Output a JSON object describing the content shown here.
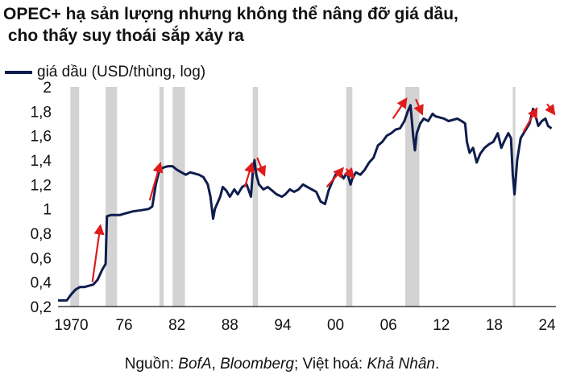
{
  "title_line1": "OPEC+ hạ sản lượng nhưng không thể nâng đỡ giá dầu,",
  "title_line2": " cho thấy suy thoái sắp xảy ra",
  "legend_label": "giá dầu (USD/thùng, log)",
  "source": {
    "prefix": "Nguồn: ",
    "s1": "BofA",
    "sep1": ", ",
    "s2": "Bloomberg",
    "sep2": "; Việt hoá: ",
    "s3": "Khả Nhân",
    "end": "."
  },
  "colors": {
    "line": "#0f1d4d",
    "shade": "#d3d3d3",
    "arrow": "#e01b1b"
  },
  "chart_data": {
    "type": "line",
    "ylim": [
      0.2,
      2.0
    ],
    "xlim": [
      1968.5,
      2025
    ],
    "y_ticks": [
      "0,2",
      "0,4",
      "0,6",
      "0,8",
      "1",
      "1,2",
      "1,4",
      "1,6",
      "1,8",
      "2"
    ],
    "y_tick_values": [
      0.2,
      0.4,
      0.6,
      0.8,
      1.0,
      1.2,
      1.4,
      1.6,
      1.8,
      2.0
    ],
    "x_ticks": [
      "1970",
      "76",
      "82",
      "88",
      "94",
      "00",
      "06",
      "12",
      "18",
      "24"
    ],
    "x_tick_values": [
      1970,
      1976,
      1982,
      1988,
      1994,
      2000,
      2006,
      2012,
      2018,
      2024
    ],
    "recessions": [
      [
        1969.9,
        1970.9
      ],
      [
        1973.9,
        1975.2
      ],
      [
        1980.0,
        1980.5
      ],
      [
        1981.5,
        1982.9
      ],
      [
        1990.6,
        1991.2
      ],
      [
        2001.2,
        2001.9
      ],
      [
        2007.9,
        2009.5
      ],
      [
        2020.1,
        2020.4
      ]
    ],
    "series": [
      {
        "x": [
          1968.5,
          1969.5,
          1970.0,
          1970.5,
          1971.0,
          1971.5,
          1972.0,
          1972.5,
          1973.0,
          1973.5,
          1973.9,
          1974.05,
          1974.5,
          1975.0,
          1975.5,
          1976.0,
          1977.0,
          1978.0,
          1978.8,
          1979.2,
          1979.6,
          1980.0,
          1980.5,
          1981.0,
          1981.5,
          1982.0,
          1982.5,
          1983.0,
          1983.5,
          1984.0,
          1984.5,
          1985.0,
          1985.5,
          1985.8,
          1986.1,
          1986.3,
          1986.6,
          1986.9,
          1987.2,
          1987.6,
          1988.0,
          1988.5,
          1988.9,
          1989.4,
          1989.9,
          1990.4,
          1990.6,
          1990.8,
          1991.0,
          1991.3,
          1991.8,
          1992.3,
          1992.8,
          1993.3,
          1993.9,
          1994.3,
          1994.8,
          1995.3,
          1995.8,
          1996.3,
          1996.8,
          1997.3,
          1997.8,
          1998.3,
          1998.8,
          1999.2,
          1999.6,
          2000.0,
          2000.5,
          2000.9,
          2001.3,
          2001.7,
          2001.9,
          2002.3,
          2002.8,
          2003.3,
          2003.8,
          2004.3,
          2004.8,
          2005.3,
          2005.8,
          2006.3,
          2006.8,
          2007.3,
          2007.8,
          2008.2,
          2008.5,
          2008.8,
          2009.0,
          2009.2,
          2009.6,
          2010.0,
          2010.5,
          2011.0,
          2011.3,
          2011.8,
          2012.3,
          2012.8,
          2013.3,
          2013.8,
          2014.3,
          2014.7,
          2014.9,
          2015.2,
          2015.6,
          2016.0,
          2016.4,
          2016.9,
          2017.4,
          2017.9,
          2018.4,
          2018.8,
          2019.1,
          2019.6,
          2019.9,
          2020.1,
          2020.3,
          2020.6,
          2021.0,
          2021.5,
          2022.0,
          2022.4,
          2022.7,
          2023.0,
          2023.4,
          2023.8,
          2024.1,
          2024.5
        ],
        "values": [
          0.25,
          0.25,
          0.3,
          0.34,
          0.36,
          0.36,
          0.37,
          0.38,
          0.42,
          0.5,
          0.55,
          0.94,
          0.95,
          0.95,
          0.95,
          0.96,
          0.98,
          0.99,
          1.0,
          1.02,
          1.2,
          1.32,
          1.34,
          1.35,
          1.35,
          1.32,
          1.3,
          1.28,
          1.3,
          1.29,
          1.28,
          1.26,
          1.2,
          1.1,
          0.92,
          1.0,
          1.05,
          1.1,
          1.18,
          1.15,
          1.1,
          1.16,
          1.12,
          1.18,
          1.2,
          1.1,
          1.3,
          1.4,
          1.28,
          1.2,
          1.16,
          1.18,
          1.15,
          1.12,
          1.1,
          1.12,
          1.16,
          1.14,
          1.16,
          1.2,
          1.18,
          1.16,
          1.14,
          1.06,
          1.04,
          1.15,
          1.22,
          1.28,
          1.3,
          1.25,
          1.3,
          1.2,
          1.25,
          1.3,
          1.28,
          1.32,
          1.38,
          1.42,
          1.52,
          1.55,
          1.6,
          1.62,
          1.65,
          1.66,
          1.72,
          1.8,
          1.85,
          1.6,
          1.48,
          1.62,
          1.7,
          1.74,
          1.72,
          1.78,
          1.76,
          1.75,
          1.74,
          1.72,
          1.73,
          1.74,
          1.72,
          1.7,
          1.55,
          1.46,
          1.5,
          1.38,
          1.45,
          1.5,
          1.53,
          1.55,
          1.62,
          1.5,
          1.55,
          1.62,
          1.58,
          1.28,
          1.12,
          1.4,
          1.58,
          1.64,
          1.7,
          1.82,
          1.76,
          1.68,
          1.72,
          1.74,
          1.68,
          1.66
        ]
      }
    ],
    "arrows": [
      {
        "dir": "up",
        "x": [
          1972.4,
          1973.3
        ],
        "y": [
          0.4,
          0.86
        ]
      },
      {
        "dir": "up",
        "x": [
          1978.9,
          1980.1
        ],
        "y": [
          1.07,
          1.37
        ]
      },
      {
        "dir": "up",
        "x": [
          1989.7,
          1990.5
        ],
        "y": [
          1.18,
          1.37
        ]
      },
      {
        "dir": "down",
        "x": [
          1991.1,
          1991.9
        ],
        "y": [
          1.42,
          1.28
        ]
      },
      {
        "dir": "up",
        "x": [
          1999.0,
          2000.8
        ],
        "y": [
          1.18,
          1.33
        ]
      },
      {
        "dir": "down",
        "x": [
          2001.2,
          2002.0
        ],
        "y": [
          1.33,
          1.26
        ]
      },
      {
        "dir": "up",
        "x": [
          2006.5,
          2008.0
        ],
        "y": [
          1.74,
          1.9
        ]
      },
      {
        "dir": "down",
        "x": [
          2009.1,
          2009.8
        ],
        "y": [
          1.9,
          1.78
        ]
      },
      {
        "dir": "up",
        "x": [
          2021.3,
          2022.8
        ],
        "y": [
          1.63,
          1.82
        ]
      },
      {
        "dir": "down",
        "x": [
          2024.0,
          2024.8
        ],
        "y": [
          1.86,
          1.78
        ]
      }
    ]
  }
}
